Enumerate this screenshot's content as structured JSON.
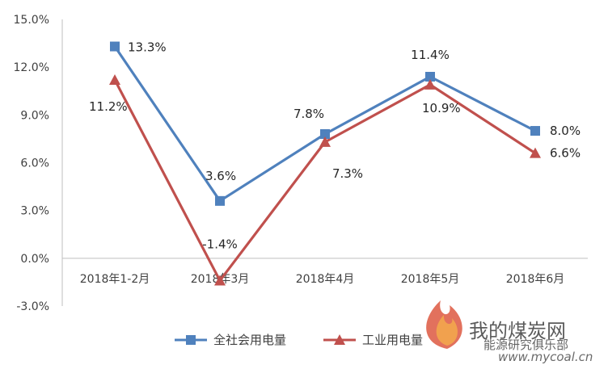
{
  "chart_data": {
    "type": "line",
    "categories": [
      "2018年1-2月",
      "2018年3月",
      "2018年4月",
      "2018年5月",
      "2018年6月"
    ],
    "y_ticks": [
      "15.0%",
      "12.0%",
      "9.0%",
      "6.0%",
      "3.0%",
      "0.0%",
      "-3.0%"
    ],
    "ylim": [
      -3,
      15
    ],
    "grid": false,
    "legend_position": "bottom",
    "series": [
      {
        "name": "全社会用电量",
        "color": "#4f81bd",
        "marker": "square",
        "values": [
          13.3,
          3.6,
          7.8,
          11.4,
          8.0
        ],
        "labels": [
          "13.3%",
          "3.6%",
          "7.8%",
          "11.4%",
          "8.0%"
        ]
      },
      {
        "name": "工业用电量",
        "color": "#c0504d",
        "marker": "triangle",
        "values": [
          11.2,
          -1.4,
          7.3,
          10.9,
          6.6
        ],
        "labels": [
          "11.2%",
          "-1.4%",
          "7.3%",
          "10.9%",
          "6.6%"
        ]
      }
    ]
  },
  "watermark": {
    "title": "我的煤炭网",
    "subtitle": "能源研究俱乐部",
    "url": "www.mycoal.cn"
  }
}
